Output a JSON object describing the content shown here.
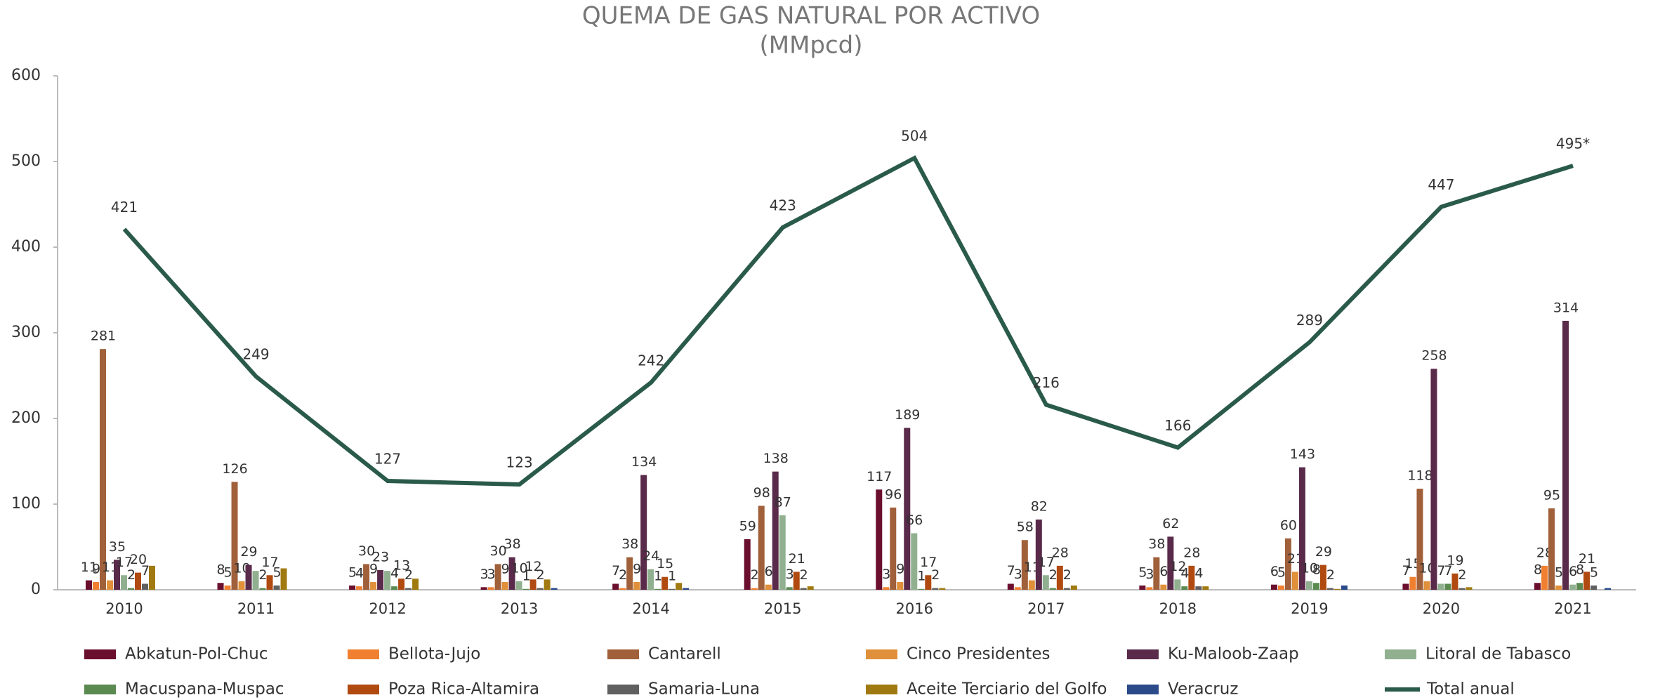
{
  "chart_data": {
    "type": "bar",
    "title": "QUEMA DE GAS NATURAL POR ACTIVO",
    "subtitle": "(MMpcd)",
    "categories": [
      "2010",
      "2011",
      "2012",
      "2013",
      "2014",
      "2015",
      "2016",
      "2017",
      "2018",
      "2019",
      "2020",
      "2021"
    ],
    "ylim": [
      0,
      600
    ],
    "yticks": [
      0,
      100,
      200,
      300,
      400,
      500,
      600
    ],
    "grid": false,
    "legend": "bottom",
    "series": [
      {
        "name": "Abkatun-Pol-Chuc",
        "color": "#6b0f2e",
        "values": [
          11,
          8,
          5,
          3,
          7,
          59,
          117,
          7,
          5,
          6,
          7,
          8
        ]
      },
      {
        "name": "Bellota-Jujo",
        "color": "#f08030",
        "values": [
          9,
          5,
          4,
          3,
          2,
          2,
          3,
          3,
          3,
          5,
          15,
          28
        ]
      },
      {
        "name": "Cantarell",
        "color": "#a0603a",
        "values": [
          281,
          126,
          30,
          30,
          38,
          98,
          96,
          58,
          38,
          60,
          118,
          95
        ]
      },
      {
        "name": "Cinco Presidentes",
        "color": "#e0903a",
        "values": [
          11,
          10,
          9,
          9,
          9,
          6,
          9,
          11,
          6,
          21,
          10,
          5
        ]
      },
      {
        "name": "Ku-Maloob-Zaap",
        "color": "#5a2a4a",
        "values": [
          35,
          29,
          23,
          38,
          134,
          138,
          189,
          82,
          62,
          143,
          258,
          314
        ]
      },
      {
        "name": "Litoral de Tabasco",
        "color": "#90b090",
        "values": [
          17,
          22,
          22,
          10,
          24,
          87,
          66,
          17,
          12,
          10,
          7,
          6
        ],
        "value_labels": [
          "17",
          null,
          null,
          "10",
          "24",
          "87",
          "66",
          "17",
          "12",
          "10",
          "7",
          "6"
        ]
      },
      {
        "name": "Macuspana-Muspac",
        "color": "#5a8a50",
        "values": [
          2,
          2,
          4,
          1,
          1,
          3,
          1,
          2,
          4,
          8,
          7,
          8
        ]
      },
      {
        "name": "Poza Rica-Altamira",
        "color": "#b04a10",
        "values": [
          20,
          17,
          13,
          12,
          15,
          21,
          17,
          28,
          28,
          29,
          19,
          21
        ]
      },
      {
        "name": "Samaria-Luna",
        "color": "#606060",
        "values": [
          7,
          5,
          2,
          2,
          1,
          2,
          2,
          2,
          4,
          2,
          2,
          5
        ]
      },
      {
        "name": "Aceite Terciario del Golfo",
        "color": "#a07a10",
        "values": [
          28,
          25,
          13,
          12,
          8,
          4,
          2,
          5,
          4,
          1,
          3,
          0
        ],
        "value_labels": [
          null,
          null,
          null,
          null,
          null,
          null,
          null,
          null,
          null,
          null,
          null,
          null
        ]
      },
      {
        "name": "Veracruz",
        "color": "#2a4a8a",
        "values": [
          0,
          0,
          0,
          2,
          2,
          0,
          0,
          0,
          0,
          5,
          0,
          2
        ],
        "value_labels": [
          null,
          null,
          null,
          null,
          null,
          null,
          null,
          null,
          null,
          null,
          null,
          null
        ]
      },
      {
        "name": "Total anual",
        "color": "#2a5a4a",
        "type": "line",
        "values": [
          421,
          249,
          127,
          123,
          242,
          423,
          504,
          216,
          166,
          289,
          447,
          495
        ],
        "value_labels": [
          "421",
          "249",
          "127",
          "123",
          "242",
          "423",
          "504",
          "216",
          "166",
          "289",
          "447",
          "495*"
        ]
      }
    ]
  }
}
